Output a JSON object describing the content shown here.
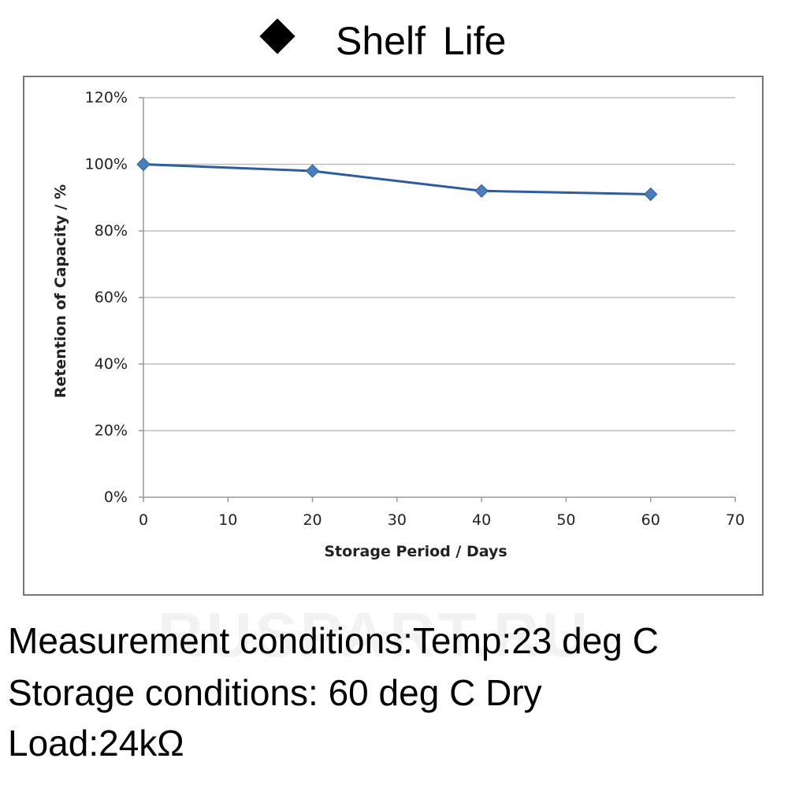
{
  "title": "Shelf Life",
  "watermark": "RUSPART.RU",
  "conditions": {
    "measurement": "Measurement conditions:Temp:23 deg C",
    "storage": "Storage conditions: 60 deg C Dry",
    "load": "Load:24kΩ"
  },
  "chart_data": {
    "type": "line",
    "title": "",
    "xlabel": "Storage Period / Days",
    "ylabel": "Retention of Capacity / %",
    "xlim": [
      0,
      70
    ],
    "ylim": [
      0,
      120
    ],
    "xticks": [
      0,
      10,
      20,
      30,
      40,
      50,
      60,
      70
    ],
    "yticks": [
      "0%",
      "20%",
      "40%",
      "60%",
      "80%",
      "100%",
      "120%"
    ],
    "grid": "horizontal",
    "series": [
      {
        "name": "Retention",
        "color": "#2e5c9e",
        "marker": "diamond",
        "marker_color": "#4a7ebb",
        "x": [
          0,
          20,
          40,
          60
        ],
        "values": [
          100,
          98,
          92,
          91
        ]
      }
    ]
  }
}
